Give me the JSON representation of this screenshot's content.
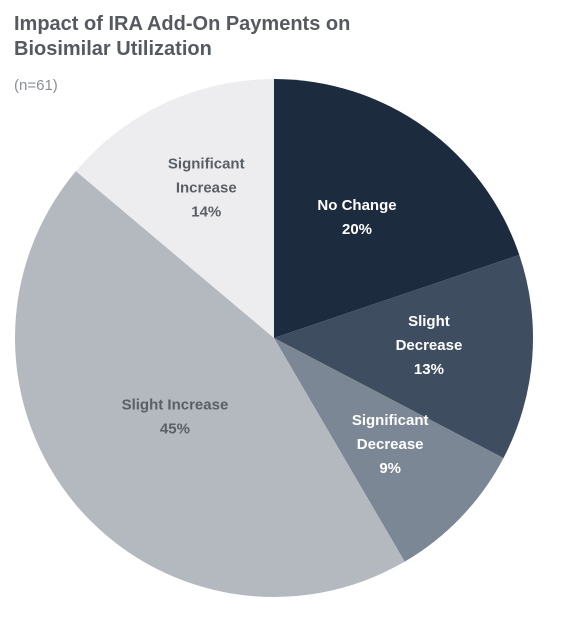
{
  "chart_data": {
    "type": "pie",
    "title": "Impact of IRA Add-On Payments on Biosimilar Utilization",
    "subtitle": "(n=61)",
    "categories": [
      "No Change",
      "Slight Decrease",
      "Significant Decrease",
      "Slight Increase",
      "Significant Increase"
    ],
    "values": [
      20,
      13,
      9,
      45,
      14
    ],
    "value_labels": [
      "20%",
      "13%",
      "9%",
      "45%",
      "14%"
    ],
    "colors": [
      "#1c2b3e",
      "#3e4d60",
      "#7b8794",
      "#b4b9c0",
      "#ededef"
    ]
  }
}
